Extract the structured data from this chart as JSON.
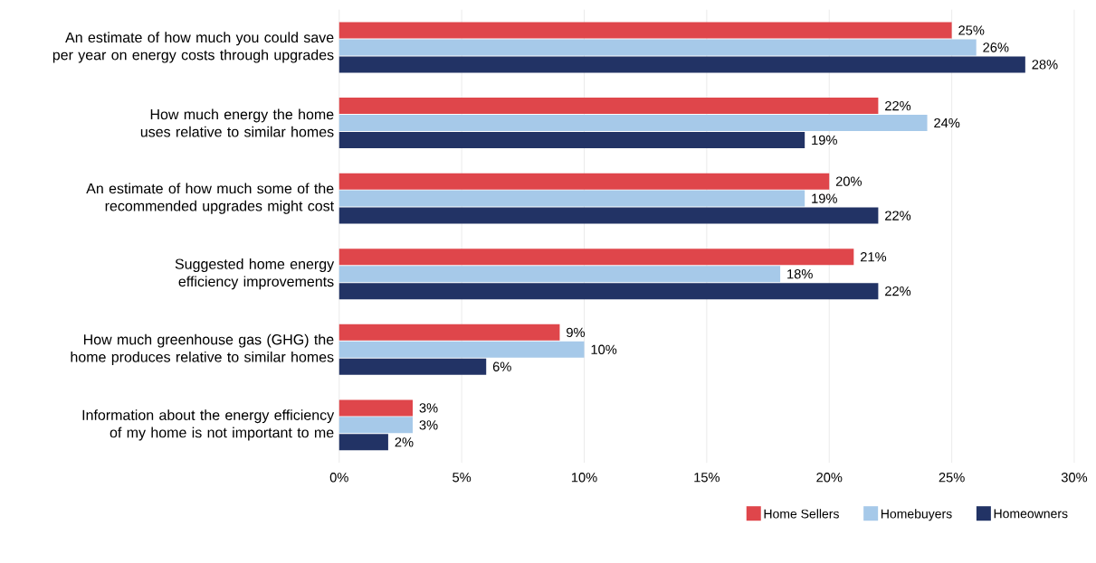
{
  "chart_data": {
    "type": "bar",
    "orientation": "horizontal",
    "categories": [
      "An estimate of how much you could save per year on energy costs through upgrades",
      "How much energy the home uses relative to similar homes",
      "An estimate of how much some of the recommended upgrades might cost",
      "Suggested home energy efficiency improvements",
      "How much greenhouse gas (GHG) the home produces relative to similar homes",
      "Information about the energy efficiency of my home is not important to me"
    ],
    "series": [
      {
        "name": "Home Sellers",
        "color": "#df464b",
        "values": [
          25,
          22,
          20,
          21,
          9,
          3
        ],
        "value_labels": [
          "25%",
          "22%",
          "20%",
          "21%",
          "9%",
          "3%"
        ]
      },
      {
        "name": "Homebuyers",
        "color": "#a6c9e9",
        "values": [
          26,
          24,
          19,
          18,
          10,
          3
        ],
        "value_labels": [
          "26%",
          "24%",
          "19%",
          "18%",
          "10%",
          "3%"
        ]
      },
      {
        "name": "Homeowners",
        "color": "#223365",
        "values": [
          28,
          19,
          22,
          22,
          6,
          2
        ],
        "value_labels": [
          "28%",
          "19%",
          "22%",
          "22%",
          "6%",
          "2%"
        ]
      }
    ],
    "xlim": [
      0,
      30
    ],
    "xticks": [
      {
        "value": 0,
        "label": "0%"
      },
      {
        "value": 5,
        "label": "5%"
      },
      {
        "value": 10,
        "label": "10%"
      },
      {
        "value": 15,
        "label": "15%"
      },
      {
        "value": 20,
        "label": "20%"
      },
      {
        "value": 25,
        "label": "25%"
      },
      {
        "value": 30,
        "label": "30%"
      }
    ],
    "grid": "x",
    "legend": "bottom right"
  }
}
